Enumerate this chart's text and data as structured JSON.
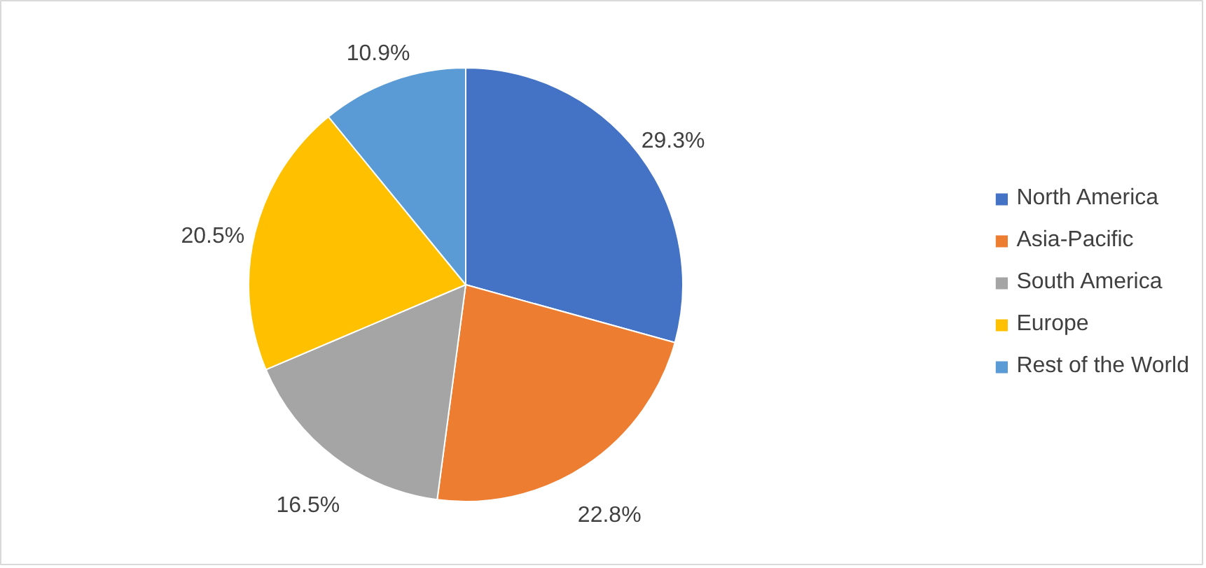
{
  "chart_data": {
    "type": "pie",
    "categories": [
      "North America",
      "Asia-Pacific",
      "South America",
      "Europe",
      "Rest of the World"
    ],
    "values": [
      29.3,
      22.8,
      16.5,
      20.5,
      10.9
    ],
    "colors": [
      "#4472c4",
      "#ed7d31",
      "#a5a5a5",
      "#ffc000",
      "#5b9bd5"
    ],
    "value_labels": [
      "29.3%",
      "22.8%",
      "16.5%",
      "20.5%",
      "10.9%"
    ],
    "legend": "right"
  }
}
